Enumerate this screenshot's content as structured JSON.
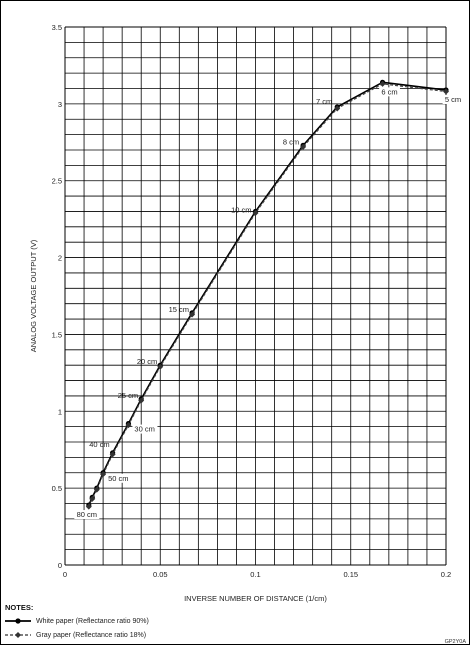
{
  "chart_data": {
    "type": "line",
    "xlabel": "INVERSE NUMBER OF DISTANCE (1/cm)",
    "ylabel": "ANALOG VOLTAGE OUTPUT (V)",
    "xlim": [
      0,
      0.2
    ],
    "ylim": [
      0,
      3.5
    ],
    "x_ticks": [
      "0",
      "0.05",
      "0.1",
      "0.15",
      "0.2"
    ],
    "y_ticks": [
      "0",
      "0.5",
      "1",
      "1.5",
      "2",
      "2.5",
      "3",
      "3.5"
    ],
    "grid": true,
    "series": [
      {
        "name": "White paper (Reflectance ratio 90%)",
        "style": "solid",
        "x": [
          0.0125,
          0.0143,
          0.0167,
          0.02,
          0.025,
          0.0333,
          0.04,
          0.05,
          0.0667,
          0.1,
          0.125,
          0.1429,
          0.1667,
          0.2
        ],
        "values": [
          0.39,
          0.44,
          0.5,
          0.6,
          0.73,
          0.92,
          1.08,
          1.3,
          1.64,
          2.3,
          2.73,
          2.98,
          3.14,
          3.09
        ]
      },
      {
        "name": "Gray paper (Reflectance ratio 18%)",
        "style": "dashed",
        "x": [
          0.0125,
          0.0143,
          0.0167,
          0.02,
          0.025,
          0.0333,
          0.04,
          0.05,
          0.0667,
          0.1,
          0.125,
          0.1429,
          0.1667,
          0.2
        ],
        "values": [
          0.38,
          0.43,
          0.49,
          0.59,
          0.72,
          0.91,
          1.07,
          1.29,
          1.63,
          2.29,
          2.72,
          2.97,
          3.13,
          3.08
        ]
      }
    ],
    "annotations": [
      {
        "text": "80 cm",
        "x": 0.0125,
        "y": 0.39
      },
      {
        "text": "50 cm",
        "x": 0.02,
        "y": 0.6
      },
      {
        "text": "40 cm",
        "x": 0.025,
        "y": 0.73
      },
      {
        "text": "30 cm",
        "x": 0.0333,
        "y": 0.92
      },
      {
        "text": "25 cm",
        "x": 0.04,
        "y": 1.08
      },
      {
        "text": "20 cm",
        "x": 0.05,
        "y": 1.3
      },
      {
        "text": "15 cm",
        "x": 0.0667,
        "y": 1.64
      },
      {
        "text": "10 cm",
        "x": 0.1,
        "y": 2.3
      },
      {
        "text": "8 cm",
        "x": 0.125,
        "y": 2.73
      },
      {
        "text": "7 cm",
        "x": 0.1429,
        "y": 2.98
      },
      {
        "text": "6 cm",
        "x": 0.1667,
        "y": 3.14
      },
      {
        "text": "5 cm",
        "x": 0.2,
        "y": 3.09
      }
    ]
  },
  "notes": {
    "title": "NOTES:",
    "items": [
      "White paper (Reflectance ratio 90%)",
      "Gray paper (Reflectance ratio 18%)"
    ]
  },
  "figure_code": "GP2Y0A"
}
